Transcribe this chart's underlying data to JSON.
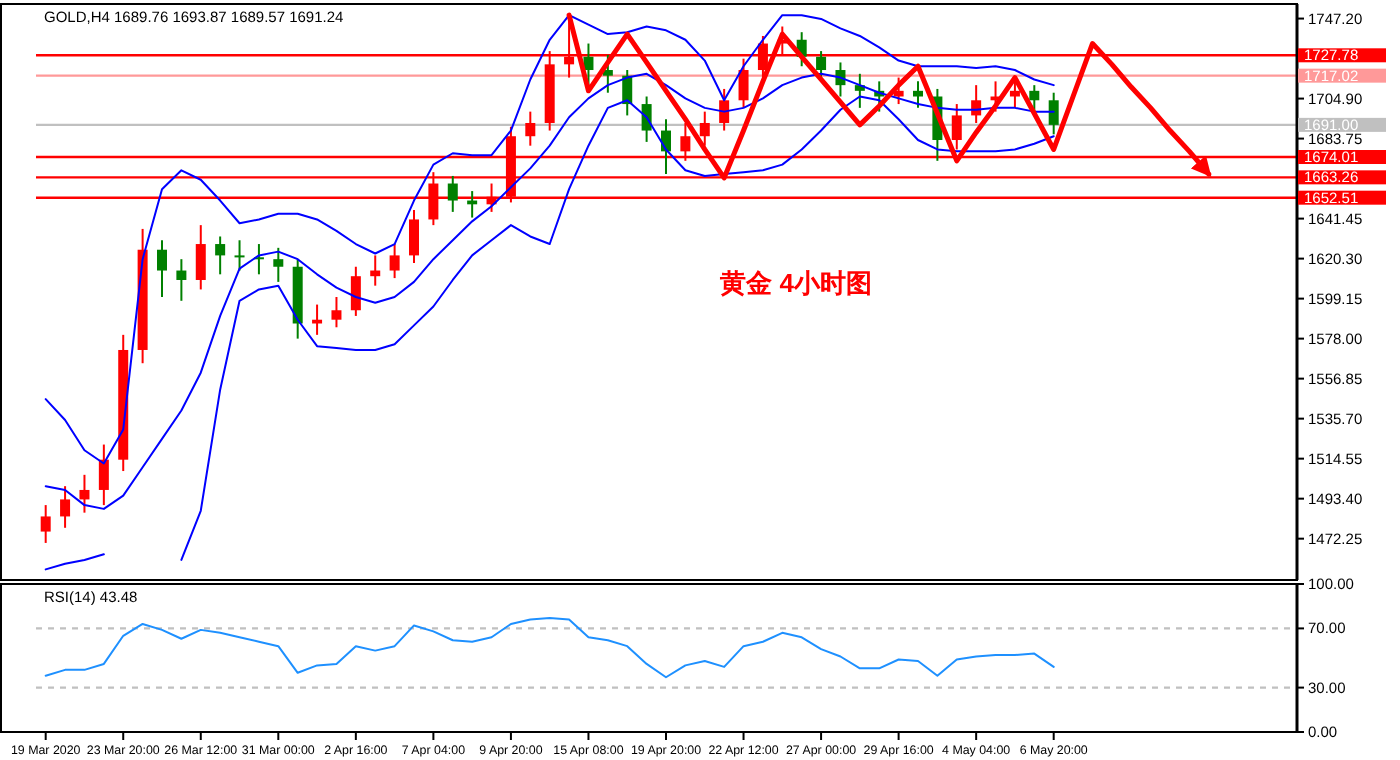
{
  "chart_data": [
    {
      "type": "candlestick",
      "categories": [
        null,
        null,
        null,
        null,
        null,
        null,
        null,
        null,
        null,
        null,
        null,
        null,
        null,
        null,
        null,
        null,
        null,
        null,
        null,
        null,
        null,
        null,
        null,
        null,
        null,
        null,
        null,
        null,
        null,
        null,
        null,
        null,
        null,
        null,
        null,
        null,
        null,
        null,
        null,
        null,
        null,
        null,
        null,
        null,
        null,
        null,
        null,
        null,
        null,
        null,
        null,
        null,
        null,
        null,
        null,
        null,
        null,
        null,
        null,
        null,
        null,
        null,
        null,
        null,
        null
      ],
      "ohlc": [
        [
          1476,
          1490,
          1470,
          1484
        ],
        [
          1484,
          1500,
          1478,
          1493
        ],
        [
          1493,
          1506,
          1486,
          1498
        ],
        [
          1498,
          1522,
          1490,
          1514
        ],
        [
          1514,
          1580,
          1508,
          1572
        ],
        [
          1572,
          1636,
          1565,
          1625
        ],
        [
          1625,
          1630,
          1600,
          1614
        ],
        [
          1614,
          1620,
          1598,
          1609
        ],
        [
          1609,
          1638,
          1604,
          1628
        ],
        [
          1628,
          1632,
          1612,
          1622
        ],
        [
          1622,
          1630,
          1614,
          1621
        ],
        [
          1621,
          1628,
          1612,
          1620
        ],
        [
          1620,
          1626,
          1608,
          1616
        ],
        [
          1616,
          1620,
          1578,
          1586
        ],
        [
          1586,
          1596,
          1580,
          1588
        ],
        [
          1588,
          1600,
          1584,
          1593
        ],
        [
          1593,
          1616,
          1590,
          1611
        ],
        [
          1611,
          1622,
          1606,
          1614
        ],
        [
          1614,
          1628,
          1610,
          1622
        ],
        [
          1622,
          1646,
          1618,
          1641
        ],
        [
          1641,
          1666,
          1638,
          1660
        ],
        [
          1660,
          1664,
          1645,
          1651
        ],
        [
          1651,
          1656,
          1642,
          1649
        ],
        [
          1649,
          1660,
          1645,
          1653
        ],
        [
          1653,
          1690,
          1650,
          1685
        ],
        [
          1685,
          1698,
          1680,
          1692
        ],
        [
          1692,
          1730,
          1688,
          1723
        ],
        [
          1723,
          1746,
          1716,
          1727
        ],
        [
          1727,
          1734,
          1712,
          1720
        ],
        [
          1720,
          1728,
          1708,
          1717
        ],
        [
          1717,
          1720,
          1696,
          1702
        ],
        [
          1702,
          1706,
          1682,
          1688
        ],
        [
          1688,
          1694,
          1665,
          1677
        ],
        [
          1677,
          1692,
          1672,
          1685
        ],
        [
          1685,
          1698,
          1680,
          1692
        ],
        [
          1692,
          1710,
          1688,
          1704
        ],
        [
          1704,
          1726,
          1700,
          1720
        ],
        [
          1720,
          1738,
          1716,
          1734
        ],
        [
          1734,
          1743,
          1728,
          1736
        ],
        [
          1736,
          1740,
          1722,
          1727
        ],
        [
          1727,
          1730,
          1714,
          1720
        ],
        [
          1720,
          1724,
          1706,
          1712
        ],
        [
          1712,
          1718,
          1700,
          1709
        ],
        [
          1709,
          1714,
          1698,
          1706
        ],
        [
          1706,
          1716,
          1702,
          1709
        ],
        [
          1709,
          1714,
          1700,
          1706
        ],
        [
          1706,
          1710,
          1672,
          1683
        ],
        [
          1683,
          1702,
          1678,
          1696
        ],
        [
          1696,
          1712,
          1692,
          1704
        ],
        [
          1704,
          1714,
          1698,
          1706
        ],
        [
          1706,
          1716,
          1700,
          1709
        ],
        [
          1709,
          1712,
          1698,
          1704
        ],
        [
          1704,
          1708,
          1686,
          1691
        ],
        null,
        null,
        null,
        null,
        null,
        null,
        null,
        null,
        null,
        null,
        null,
        null
      ],
      "colors": [
        "#ff0000",
        "#ff0000",
        "#ff0000",
        "#ff0000",
        "#ff0000",
        "#ff0000",
        "#008000",
        "#008000",
        "#ff0000",
        "#008000",
        "#008000",
        "#008000",
        "#008000",
        "#008000",
        "#ff0000",
        "#ff0000",
        "#ff0000",
        "#ff0000",
        "#ff0000",
        "#ff0000",
        "#ff0000",
        "#008000",
        "#008000",
        "#ff0000",
        "#ff0000",
        "#ff0000",
        "#ff0000",
        "#ff0000",
        "#008000",
        "#008000",
        "#008000",
        "#008000",
        "#008000",
        "#ff0000",
        "#ff0000",
        "#ff0000",
        "#ff0000",
        "#ff0000",
        "#ff0000",
        "#008000",
        "#008000",
        "#008000",
        "#008000",
        "#008000",
        "#ff0000",
        "#008000",
        "#008000",
        "#ff0000",
        "#ff0000",
        "#ff0000",
        "#ff0000",
        "#008000",
        "#008000",
        null,
        null,
        null,
        null,
        null,
        null,
        null,
        null,
        null,
        null,
        null,
        null
      ],
      "series": [
        {
          "type": "line",
          "color": "#0000ff",
          "values": [
            1546,
            1535,
            1519,
            1512,
            1530,
            1620,
            1657,
            1667,
            1662,
            1651,
            1639,
            1641,
            1644,
            1644,
            1641,
            1635,
            1628,
            1623,
            1628,
            1651,
            1670,
            1676,
            1675,
            1675,
            1688,
            1715,
            1736,
            1749,
            1744,
            1739,
            1740,
            1743,
            1741,
            1736,
            1725,
            1704,
            1722,
            1736,
            1749,
            1749,
            1747,
            1742,
            1738,
            1732,
            1725,
            1722,
            1722,
            1722,
            1721,
            1722,
            1720,
            1715,
            1712,
            null,
            null,
            null,
            null,
            null,
            null,
            null,
            null,
            null,
            null,
            null,
            null
          ]
        },
        {
          "type": "line",
          "color": "#0000ff",
          "values": [
            1500,
            1498,
            1490,
            1488,
            1495,
            1510,
            1525,
            1540,
            1560,
            1590,
            1615,
            1622,
            1624,
            1620,
            1612,
            1605,
            1600,
            1597,
            1600,
            1608,
            1620,
            1630,
            1640,
            1648,
            1658,
            1668,
            1680,
            1695,
            1705,
            1712,
            1716,
            1718,
            1712,
            1705,
            1700,
            1698,
            1700,
            1705,
            1712,
            1716,
            1718,
            1716,
            1712,
            1708,
            1705,
            1702,
            1700,
            1699,
            1699,
            1700,
            1700,
            1698,
            1698,
            null,
            null,
            null,
            null,
            null,
            null,
            null,
            null,
            null,
            null,
            null,
            null
          ]
        },
        {
          "type": "line",
          "color": "#0000ff",
          "values": [
            1456,
            1459,
            1461,
            1464,
            null,
            null,
            null,
            1461,
            1487,
            1551,
            1598,
            1604,
            1606,
            1588,
            1574,
            1573,
            1572,
            1572,
            1575,
            1585,
            1595,
            1609,
            1622,
            1630,
            1638,
            1632,
            1628,
            1657,
            1680,
            1700,
            1704,
            1695,
            1678,
            1667,
            1664,
            1665,
            1666,
            1667,
            1670,
            1678,
            1688,
            1699,
            1706,
            1704,
            1694,
            1683,
            1678,
            1677,
            1677,
            1677,
            1678,
            1681,
            1685,
            null,
            null,
            null,
            null,
            null,
            null,
            null,
            null,
            null,
            null,
            null,
            null
          ]
        },
        {
          "type": "line",
          "color": "#ff0000",
          "values": [
            null,
            null,
            null,
            null,
            null,
            null,
            null,
            null,
            null,
            null,
            null,
            null,
            null,
            null,
            null,
            null,
            null,
            null,
            null,
            null,
            null,
            null,
            null,
            null,
            null,
            null,
            null,
            1749,
            1709,
            1724,
            1739,
            1724,
            1709,
            1694,
            1678,
            1663,
            1688,
            1714,
            1739,
            1727,
            1715,
            1703,
            1691,
            1701,
            1712,
            1722,
            1697,
            1672,
            1687,
            1701,
            1716,
            1697,
            1678,
            1706,
            1734,
            1723,
            1711,
            1700,
            1688,
            1677,
            1665,
            null,
            null,
            null,
            null
          ]
        }
      ],
      "ylim": [
        1450.4,
        1754.9
      ],
      "yticks": [
        {
          "value": 1747.2,
          "label": "1747.20"
        },
        {
          "value": 1704.9,
          "label": "1704.90"
        },
        {
          "value": 1683.75,
          "label": "1683.75"
        },
        {
          "value": 1641.45,
          "label": "1641.45"
        },
        {
          "value": 1620.3,
          "label": "1620.30"
        },
        {
          "value": 1599.15,
          "label": "1599.15"
        },
        {
          "value": 1578,
          "label": "1578.00"
        },
        {
          "value": 1556.85,
          "label": "1556.85"
        },
        {
          "value": 1535.7,
          "label": "1535.70"
        },
        {
          "value": 1514.55,
          "label": "1514.55"
        },
        {
          "value": 1493.4,
          "label": "1493.40"
        },
        {
          "value": 1472.25,
          "label": "1472.25"
        }
      ],
      "ref_lines": [
        {
          "axis": "y",
          "value": 1727.78,
          "label": "1727.78",
          "color": "#ff0000"
        },
        {
          "axis": "y",
          "value": 1717.02,
          "label": "1717.02",
          "color": "#ff9999"
        },
        {
          "axis": "y",
          "value": 1691.0,
          "label": "1691.00",
          "color": "#c0c0c0"
        },
        {
          "axis": "y",
          "value": 1674.01,
          "label": "1674.01",
          "color": "#ff0000"
        },
        {
          "axis": "y",
          "value": 1663.26,
          "label": "1663.26",
          "color": "#ff0000"
        },
        {
          "axis": "y",
          "value": 1652.51,
          "label": "1652.51",
          "color": "#ff0000"
        }
      ],
      "annotations": [
        "GOLD,H4 1689.76 1693.87 1689.57 1691.24",
        "黄金 4小时图"
      ],
      "tick_labels": "y"
    },
    {
      "type": "line",
      "categories": [
        "19 Mar 2020",
        null,
        null,
        null,
        "23 Mar 20:00",
        null,
        null,
        null,
        "26 Mar 12:00",
        null,
        null,
        null,
        "31 Mar 00:00",
        null,
        null,
        null,
        "2 Apr 16:00",
        null,
        null,
        null,
        "7 Apr 04:00",
        null,
        null,
        null,
        "9 Apr 20:00",
        null,
        null,
        null,
        "15 Apr 08:00",
        null,
        null,
        null,
        "19 Apr 20:00",
        null,
        null,
        null,
        "22 Apr 12:00",
        null,
        null,
        null,
        "27 Apr 00:00",
        null,
        null,
        null,
        "29 Apr 16:00",
        null,
        null,
        null,
        "4 May 04:00",
        null,
        null,
        null,
        "6 May 20:00",
        null,
        null,
        null,
        null,
        null,
        null,
        null,
        null,
        null,
        null,
        null,
        null
      ],
      "series": [
        {
          "color": "#1e90ff",
          "values": [
            38,
            42,
            42,
            46,
            65,
            73,
            69,
            63,
            69,
            67,
            64,
            61,
            58,
            40,
            45,
            46,
            58,
            55,
            58,
            72,
            68,
            62,
            61,
            64,
            73,
            76,
            77,
            76,
            64,
            62,
            58,
            46,
            37,
            45,
            48,
            44,
            58,
            61,
            67,
            64,
            56,
            51,
            43,
            43,
            49,
            48,
            38,
            49,
            51,
            52,
            52,
            53,
            44,
            null,
            null,
            null,
            null,
            null,
            null,
            null,
            null,
            null,
            null,
            null,
            null
          ]
        }
      ],
      "ylim": [
        0,
        100
      ],
      "yticks": [
        {
          "value": 100,
          "label": "100.00"
        },
        {
          "value": 70,
          "label": "70.00"
        },
        {
          "value": 30,
          "label": "30.00"
        },
        {
          "value": 0,
          "label": "0.00"
        }
      ],
      "ref_lines": [
        {
          "axis": "y",
          "value": 70,
          "color": "#c0c0c0",
          "line_style": "dashed"
        },
        {
          "axis": "y",
          "value": 30,
          "color": "#c0c0c0",
          "line_style": "dashed"
        }
      ],
      "annotations": [
        "RSI(14) 43.48"
      ]
    }
  ]
}
